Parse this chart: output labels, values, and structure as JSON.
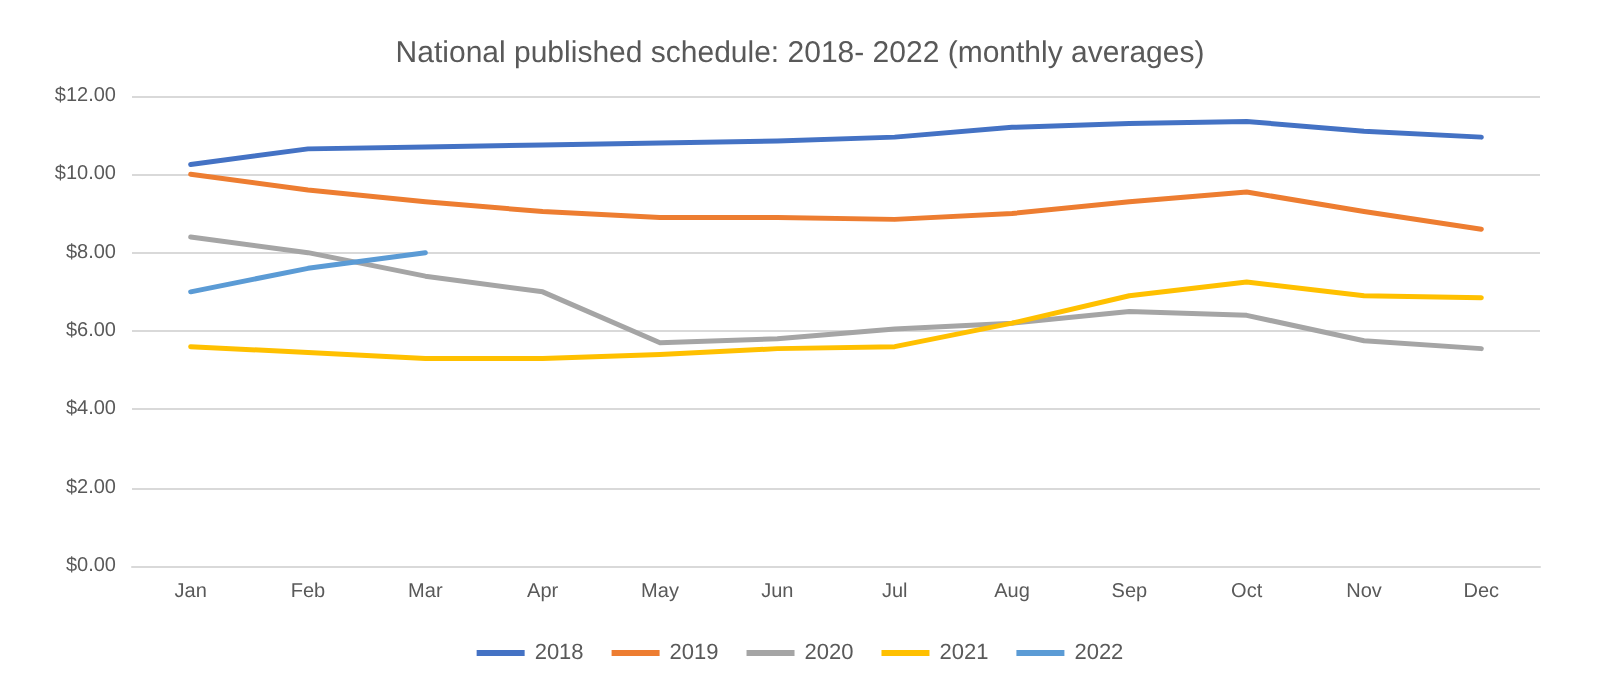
{
  "chart_data": {
    "type": "line",
    "title": "National published schedule: 2018- 2022 (monthly averages)",
    "categories": [
      "Jan",
      "Feb",
      "Mar",
      "Apr",
      "May",
      "Jun",
      "Jul",
      "Aug",
      "Sep",
      "Oct",
      "Nov",
      "Dec"
    ],
    "series": [
      {
        "name": "2018",
        "color": "#4472c4",
        "values": [
          10.25,
          10.65,
          10.7,
          10.75,
          10.8,
          10.85,
          10.95,
          11.2,
          11.3,
          11.35,
          11.1,
          10.95
        ]
      },
      {
        "name": "2019",
        "color": "#ed7d31",
        "values": [
          10.0,
          9.6,
          9.3,
          9.05,
          8.9,
          8.9,
          8.85,
          9.0,
          9.3,
          9.55,
          9.05,
          8.6
        ]
      },
      {
        "name": "2020",
        "color": "#a5a5a5",
        "values": [
          8.4,
          8.0,
          7.4,
          7.0,
          5.7,
          5.8,
          6.05,
          6.2,
          6.5,
          6.4,
          5.75,
          5.55
        ]
      },
      {
        "name": "2021",
        "color": "#ffc000",
        "values": [
          5.6,
          5.45,
          5.3,
          5.3,
          5.4,
          5.55,
          5.6,
          6.2,
          6.9,
          7.25,
          6.9,
          6.85
        ]
      },
      {
        "name": "2022",
        "color": "#5b9bd5",
        "values": [
          7.0,
          7.6,
          8.0,
          null,
          null,
          null,
          null,
          null,
          null,
          null,
          null,
          null
        ]
      }
    ],
    "ylim": [
      0,
      12
    ],
    "yticks": [
      {
        "value": 0,
        "label": "$0.00"
      },
      {
        "value": 2,
        "label": "$2.00"
      },
      {
        "value": 4,
        "label": "$4.00"
      },
      {
        "value": 6,
        "label": "$6.00"
      },
      {
        "value": 8,
        "label": "$8.00"
      },
      {
        "value": 10,
        "label": "$10.00"
      },
      {
        "value": 12,
        "label": "$12.00"
      }
    ],
    "grid": "y",
    "legend": "bottom",
    "marker": "none",
    "line_style": "solid"
  }
}
